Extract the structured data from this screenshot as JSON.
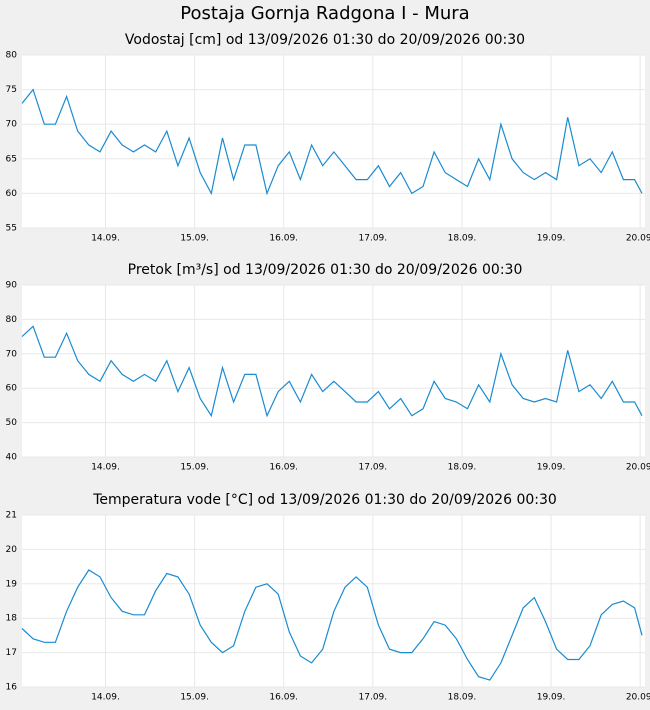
{
  "title": "Postaja Gornja Radgona I - Mura",
  "chart_data": [
    {
      "type": "line",
      "title": "Vodostaj [cm] od 13/09/2026 01:30 do 20/09/2026 00:30",
      "x": [
        "2026-09-13 01:30",
        "2026-09-13 04:30",
        "2026-09-13 07:30",
        "2026-09-13 10:30",
        "2026-09-13 13:30",
        "2026-09-13 16:30",
        "2026-09-13 19:30",
        "2026-09-13 22:30",
        "2026-09-14 01:30",
        "2026-09-14 04:30",
        "2026-09-14 07:30",
        "2026-09-14 10:30",
        "2026-09-14 13:30",
        "2026-09-14 16:30",
        "2026-09-14 19:30",
        "2026-09-14 22:30",
        "2026-09-15 01:30",
        "2026-09-15 04:30",
        "2026-09-15 07:30",
        "2026-09-15 10:30",
        "2026-09-15 13:30",
        "2026-09-15 16:30",
        "2026-09-15 19:30",
        "2026-09-15 22:30",
        "2026-09-16 01:30",
        "2026-09-16 04:30",
        "2026-09-16 07:30",
        "2026-09-16 10:30",
        "2026-09-16 13:30",
        "2026-09-16 16:30",
        "2026-09-16 19:30",
        "2026-09-16 22:30",
        "2026-09-17 01:30",
        "2026-09-17 04:30",
        "2026-09-17 07:30",
        "2026-09-17 10:30",
        "2026-09-17 13:30",
        "2026-09-17 16:30",
        "2026-09-17 19:30",
        "2026-09-17 22:30",
        "2026-09-18 01:30",
        "2026-09-18 04:30",
        "2026-09-18 07:30",
        "2026-09-18 10:30",
        "2026-09-18 13:30",
        "2026-09-18 16:30",
        "2026-09-18 19:30",
        "2026-09-18 22:30",
        "2026-09-19 01:30",
        "2026-09-19 04:30",
        "2026-09-19 07:30",
        "2026-09-19 10:30",
        "2026-09-19 13:30",
        "2026-09-19 16:30",
        "2026-09-19 19:30",
        "2026-09-19 22:30",
        "2026-09-20 00:30"
      ],
      "series": [
        {
          "color": "#1a8bd0",
          "values": [
            73,
            75,
            70,
            70,
            74,
            69,
            67,
            66,
            69,
            67,
            66,
            67,
            66,
            69,
            64,
            68,
            63,
            60,
            68,
            62,
            67,
            67,
            60,
            64,
            66,
            62,
            67,
            64,
            66,
            64,
            62,
            62,
            64,
            61,
            63,
            60,
            61,
            66,
            63,
            62,
            61,
            65,
            62,
            70,
            65,
            63,
            62,
            63,
            62,
            71,
            64,
            65,
            63,
            66,
            62,
            62,
            60
          ]
        }
      ],
      "xlim": [
        "2026-09-13 01:30",
        "2026-09-20 00:30"
      ],
      "xticks": [
        {
          "value": "2026-09-14 00:00",
          "label": "14.09."
        },
        {
          "value": "2026-09-15 00:00",
          "label": "15.09."
        },
        {
          "value": "2026-09-16 00:00",
          "label": "16.09."
        },
        {
          "value": "2026-09-17 00:00",
          "label": "17.09."
        },
        {
          "value": "2026-09-18 00:00",
          "label": "18.09."
        },
        {
          "value": "2026-09-19 00:00",
          "label": "19.09."
        },
        {
          "value": "2026-09-20 00:00",
          "label": "20.09."
        }
      ],
      "ylim": [
        55,
        80
      ],
      "yticks": [
        55,
        60,
        65,
        70,
        75,
        80
      ],
      "grid": true
    },
    {
      "type": "line",
      "title": "Pretok [m³/s] od 13/09/2026 01:30 do 20/09/2026 00:30",
      "x": [
        "2026-09-13 01:30",
        "2026-09-13 04:30",
        "2026-09-13 07:30",
        "2026-09-13 10:30",
        "2026-09-13 13:30",
        "2026-09-13 16:30",
        "2026-09-13 19:30",
        "2026-09-13 22:30",
        "2026-09-14 01:30",
        "2026-09-14 04:30",
        "2026-09-14 07:30",
        "2026-09-14 10:30",
        "2026-09-14 13:30",
        "2026-09-14 16:30",
        "2026-09-14 19:30",
        "2026-09-14 22:30",
        "2026-09-15 01:30",
        "2026-09-15 04:30",
        "2026-09-15 07:30",
        "2026-09-15 10:30",
        "2026-09-15 13:30",
        "2026-09-15 16:30",
        "2026-09-15 19:30",
        "2026-09-15 22:30",
        "2026-09-16 01:30",
        "2026-09-16 04:30",
        "2026-09-16 07:30",
        "2026-09-16 10:30",
        "2026-09-16 13:30",
        "2026-09-16 16:30",
        "2026-09-16 19:30",
        "2026-09-16 22:30",
        "2026-09-17 01:30",
        "2026-09-17 04:30",
        "2026-09-17 07:30",
        "2026-09-17 10:30",
        "2026-09-17 13:30",
        "2026-09-17 16:30",
        "2026-09-17 19:30",
        "2026-09-17 22:30",
        "2026-09-18 01:30",
        "2026-09-18 04:30",
        "2026-09-18 07:30",
        "2026-09-18 10:30",
        "2026-09-18 13:30",
        "2026-09-18 16:30",
        "2026-09-18 19:30",
        "2026-09-18 22:30",
        "2026-09-19 01:30",
        "2026-09-19 04:30",
        "2026-09-19 07:30",
        "2026-09-19 10:30",
        "2026-09-19 13:30",
        "2026-09-19 16:30",
        "2026-09-19 19:30",
        "2026-09-19 22:30",
        "2026-09-20 00:30"
      ],
      "series": [
        {
          "color": "#1a8bd0",
          "values": [
            75,
            78,
            69,
            69,
            76,
            68,
            64,
            62,
            68,
            64,
            62,
            64,
            62,
            68,
            59,
            66,
            57,
            52,
            66,
            56,
            64,
            64,
            52,
            59,
            62,
            56,
            64,
            59,
            62,
            59,
            56,
            56,
            59,
            54,
            57,
            52,
            54,
            62,
            57,
            56,
            54,
            61,
            56,
            70,
            61,
            57,
            56,
            57,
            56,
            71,
            59,
            61,
            57,
            62,
            56,
            56,
            52
          ]
        }
      ],
      "xlim": [
        "2026-09-13 01:30",
        "2026-09-20 00:30"
      ],
      "xticks": [
        {
          "value": "2026-09-14 00:00",
          "label": "14.09."
        },
        {
          "value": "2026-09-15 00:00",
          "label": "15.09."
        },
        {
          "value": "2026-09-16 00:00",
          "label": "16.09."
        },
        {
          "value": "2026-09-17 00:00",
          "label": "17.09."
        },
        {
          "value": "2026-09-18 00:00",
          "label": "18.09."
        },
        {
          "value": "2026-09-19 00:00",
          "label": "19.09."
        },
        {
          "value": "2026-09-20 00:00",
          "label": "20.09."
        }
      ],
      "ylim": [
        40,
        90
      ],
      "yticks": [
        40,
        50,
        60,
        70,
        80,
        90
      ],
      "grid": true
    },
    {
      "type": "line",
      "title": "Temperatura vode [°C] od 13/09/2026 01:30 do 20/09/2026 00:30",
      "x": [
        "2026-09-13 01:30",
        "2026-09-13 04:30",
        "2026-09-13 07:30",
        "2026-09-13 10:30",
        "2026-09-13 13:30",
        "2026-09-13 16:30",
        "2026-09-13 19:30",
        "2026-09-13 22:30",
        "2026-09-14 01:30",
        "2026-09-14 04:30",
        "2026-09-14 07:30",
        "2026-09-14 10:30",
        "2026-09-14 13:30",
        "2026-09-14 16:30",
        "2026-09-14 19:30",
        "2026-09-14 22:30",
        "2026-09-15 01:30",
        "2026-09-15 04:30",
        "2026-09-15 07:30",
        "2026-09-15 10:30",
        "2026-09-15 13:30",
        "2026-09-15 16:30",
        "2026-09-15 19:30",
        "2026-09-15 22:30",
        "2026-09-16 01:30",
        "2026-09-16 04:30",
        "2026-09-16 07:30",
        "2026-09-16 10:30",
        "2026-09-16 13:30",
        "2026-09-16 16:30",
        "2026-09-16 19:30",
        "2026-09-16 22:30",
        "2026-09-17 01:30",
        "2026-09-17 04:30",
        "2026-09-17 07:30",
        "2026-09-17 10:30",
        "2026-09-17 13:30",
        "2026-09-17 16:30",
        "2026-09-17 19:30",
        "2026-09-17 22:30",
        "2026-09-18 01:30",
        "2026-09-18 04:30",
        "2026-09-18 07:30",
        "2026-09-18 10:30",
        "2026-09-18 13:30",
        "2026-09-18 16:30",
        "2026-09-18 19:30",
        "2026-09-18 22:30",
        "2026-09-19 01:30",
        "2026-09-19 04:30",
        "2026-09-19 07:30",
        "2026-09-19 10:30",
        "2026-09-19 13:30",
        "2026-09-19 16:30",
        "2026-09-19 19:30",
        "2026-09-19 22:30",
        "2026-09-20 00:30"
      ],
      "series": [
        {
          "color": "#1a8bd0",
          "values": [
            17.7,
            17.4,
            17.3,
            17.3,
            18.2,
            18.9,
            19.4,
            19.2,
            18.6,
            18.2,
            18.1,
            18.1,
            18.8,
            19.3,
            19.2,
            18.7,
            17.8,
            17.3,
            17.0,
            17.2,
            18.2,
            18.9,
            19.0,
            18.7,
            17.6,
            16.9,
            16.7,
            17.1,
            18.2,
            18.9,
            19.2,
            18.9,
            17.8,
            17.1,
            17.0,
            17.0,
            17.4,
            17.9,
            17.8,
            17.4,
            16.8,
            16.3,
            16.2,
            16.7,
            17.5,
            18.3,
            18.6,
            17.9,
            17.1,
            16.8,
            16.8,
            17.2,
            18.1,
            18.4,
            18.5,
            18.3,
            17.5
          ]
        }
      ],
      "xlim": [
        "2026-09-13 01:30",
        "2026-09-20 00:30"
      ],
      "xticks": [
        {
          "value": "2026-09-14 00:00",
          "label": "14.09."
        },
        {
          "value": "2026-09-15 00:00",
          "label": "15.09."
        },
        {
          "value": "2026-09-16 00:00",
          "label": "16.09."
        },
        {
          "value": "2026-09-17 00:00",
          "label": "17.09."
        },
        {
          "value": "2026-09-18 00:00",
          "label": "18.09."
        },
        {
          "value": "2026-09-19 00:00",
          "label": "19.09."
        },
        {
          "value": "2026-09-20 00:00",
          "label": "20.09."
        }
      ],
      "ylim": [
        16,
        21
      ],
      "yticks": [
        16,
        17,
        18,
        19,
        20,
        21
      ],
      "grid": true
    }
  ]
}
